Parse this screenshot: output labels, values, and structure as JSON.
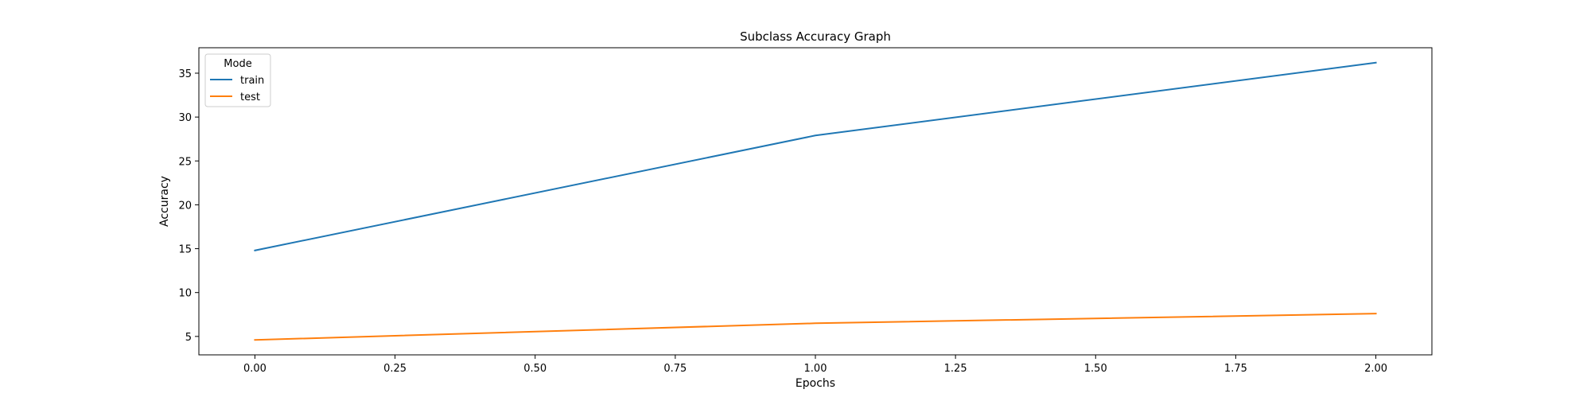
{
  "chart_data": {
    "type": "line",
    "title": "Subclass Accuracy Graph",
    "xlabel": "Epochs",
    "ylabel": "Accuracy",
    "xlim": [
      -0.1,
      2.1
    ],
    "ylim": [
      2.9,
      37.9
    ],
    "xticks": [
      0.0,
      0.25,
      0.5,
      0.75,
      1.0,
      1.25,
      1.5,
      1.75,
      2.0
    ],
    "xtick_labels": [
      "0.00",
      "0.25",
      "0.50",
      "0.75",
      "1.00",
      "1.25",
      "1.50",
      "1.75",
      "2.00"
    ],
    "yticks": [
      5,
      10,
      15,
      20,
      25,
      30,
      35
    ],
    "ytick_labels": [
      "5",
      "10",
      "15",
      "20",
      "25",
      "30",
      "35"
    ],
    "grid": false,
    "legend": {
      "title": "Mode",
      "position": "top-left"
    },
    "x": [
      0,
      1,
      2
    ],
    "series": [
      {
        "name": "train",
        "values": [
          14.8,
          27.9,
          36.2
        ],
        "color": "#1f77b4"
      },
      {
        "name": "test",
        "values": [
          4.6,
          6.5,
          7.6
        ],
        "color": "#ff7f0e"
      }
    ]
  }
}
